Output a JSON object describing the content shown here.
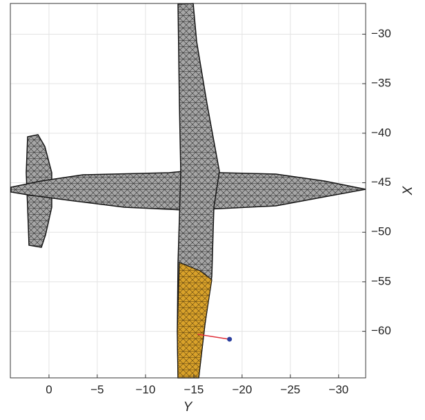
{
  "chart_data": {
    "type": "line",
    "x_label": "Y",
    "y_label": "X",
    "xlim": [
      4,
      -32.8
    ],
    "ylim": [
      -64.7,
      -26.9
    ],
    "xticks": [
      0,
      {
        "value": -5,
        "label": "−5"
      },
      {
        "value": -10,
        "label": "−10"
      },
      {
        "value": -15,
        "label": "−15"
      },
      {
        "value": -20,
        "label": "−20"
      },
      {
        "value": -25,
        "label": "−25"
      },
      {
        "value": -30,
        "label": "−30"
      }
    ],
    "yticks": [
      {
        "value": -30,
        "label": "−30"
      },
      {
        "value": -35,
        "label": "−35"
      },
      {
        "value": -40,
        "label": "−40"
      },
      {
        "value": -45,
        "label": "−45"
      },
      {
        "value": -50,
        "label": "−50"
      },
      {
        "value": -55,
        "label": "−55"
      },
      {
        "value": -60,
        "label": "−60"
      }
    ],
    "grid": true,
    "series": [
      {
        "color": "#e0303a",
        "marker_color": "#2b3f9e",
        "x": [
          -15.4,
          -18.7
        ],
        "y": [
          -60.3,
          -60.8
        ]
      }
    ]
  }
}
